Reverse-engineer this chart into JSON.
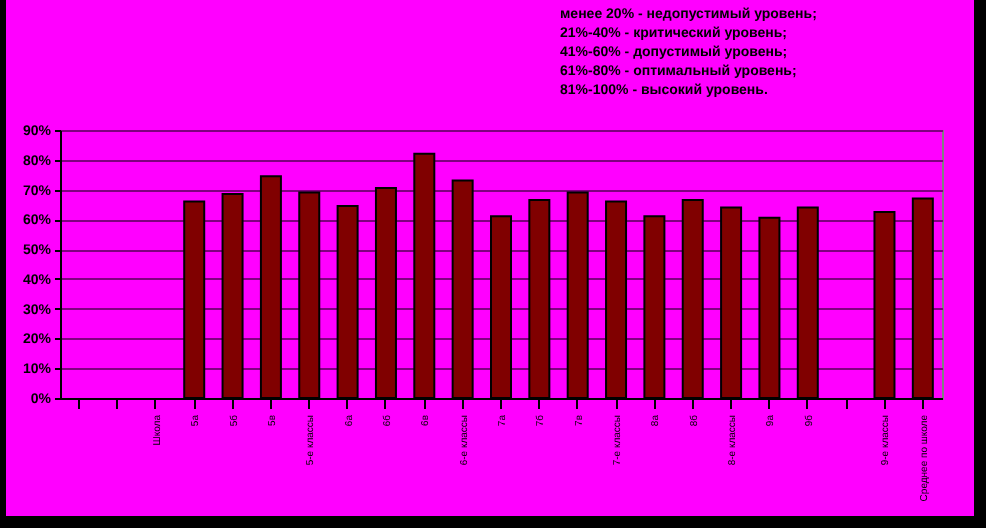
{
  "chart_data": {
    "type": "bar",
    "categories": [
      null,
      null,
      "Школа",
      "5а",
      "5б",
      "5в",
      "5-е классы",
      "6а",
      "6б",
      "6в",
      "6-е классы",
      "7а",
      "7б",
      "7в",
      "7-е классы",
      "8а",
      "8б",
      "8-е классы",
      "9а",
      "9б",
      null,
      "9-е классы",
      "Среднее по школе"
    ],
    "values": [
      null,
      null,
      null,
      66,
      68.5,
      74.5,
      69,
      64.5,
      70.5,
      82,
      73,
      61,
      66.5,
      69,
      66,
      61,
      66.5,
      64,
      60.5,
      64,
      null,
      62.5,
      67
    ],
    "color": "#800000",
    "ylim": [
      0,
      90
    ],
    "yticks": [
      {
        "value": 0,
        "label": "0%"
      },
      {
        "value": 10,
        "label": "10%"
      },
      {
        "value": 20,
        "label": "20%"
      },
      {
        "value": 30,
        "label": "30%"
      },
      {
        "value": 40,
        "label": "40%"
      },
      {
        "value": 50,
        "label": "50%"
      },
      {
        "value": 60,
        "label": "60%"
      },
      {
        "value": 70,
        "label": "70%"
      },
      {
        "value": 80,
        "label": "80%"
      },
      {
        "value": 90,
        "label": "90%"
      }
    ],
    "grid": "y",
    "annotations": [
      "менее 20% - недопустимый уровень;",
      "21%-40% - критический уровень;",
      "41%-60% - допустимый уровень;",
      "61%-80% - оптимальный уровень;",
      "81%-100% - высокий уровень."
    ]
  }
}
